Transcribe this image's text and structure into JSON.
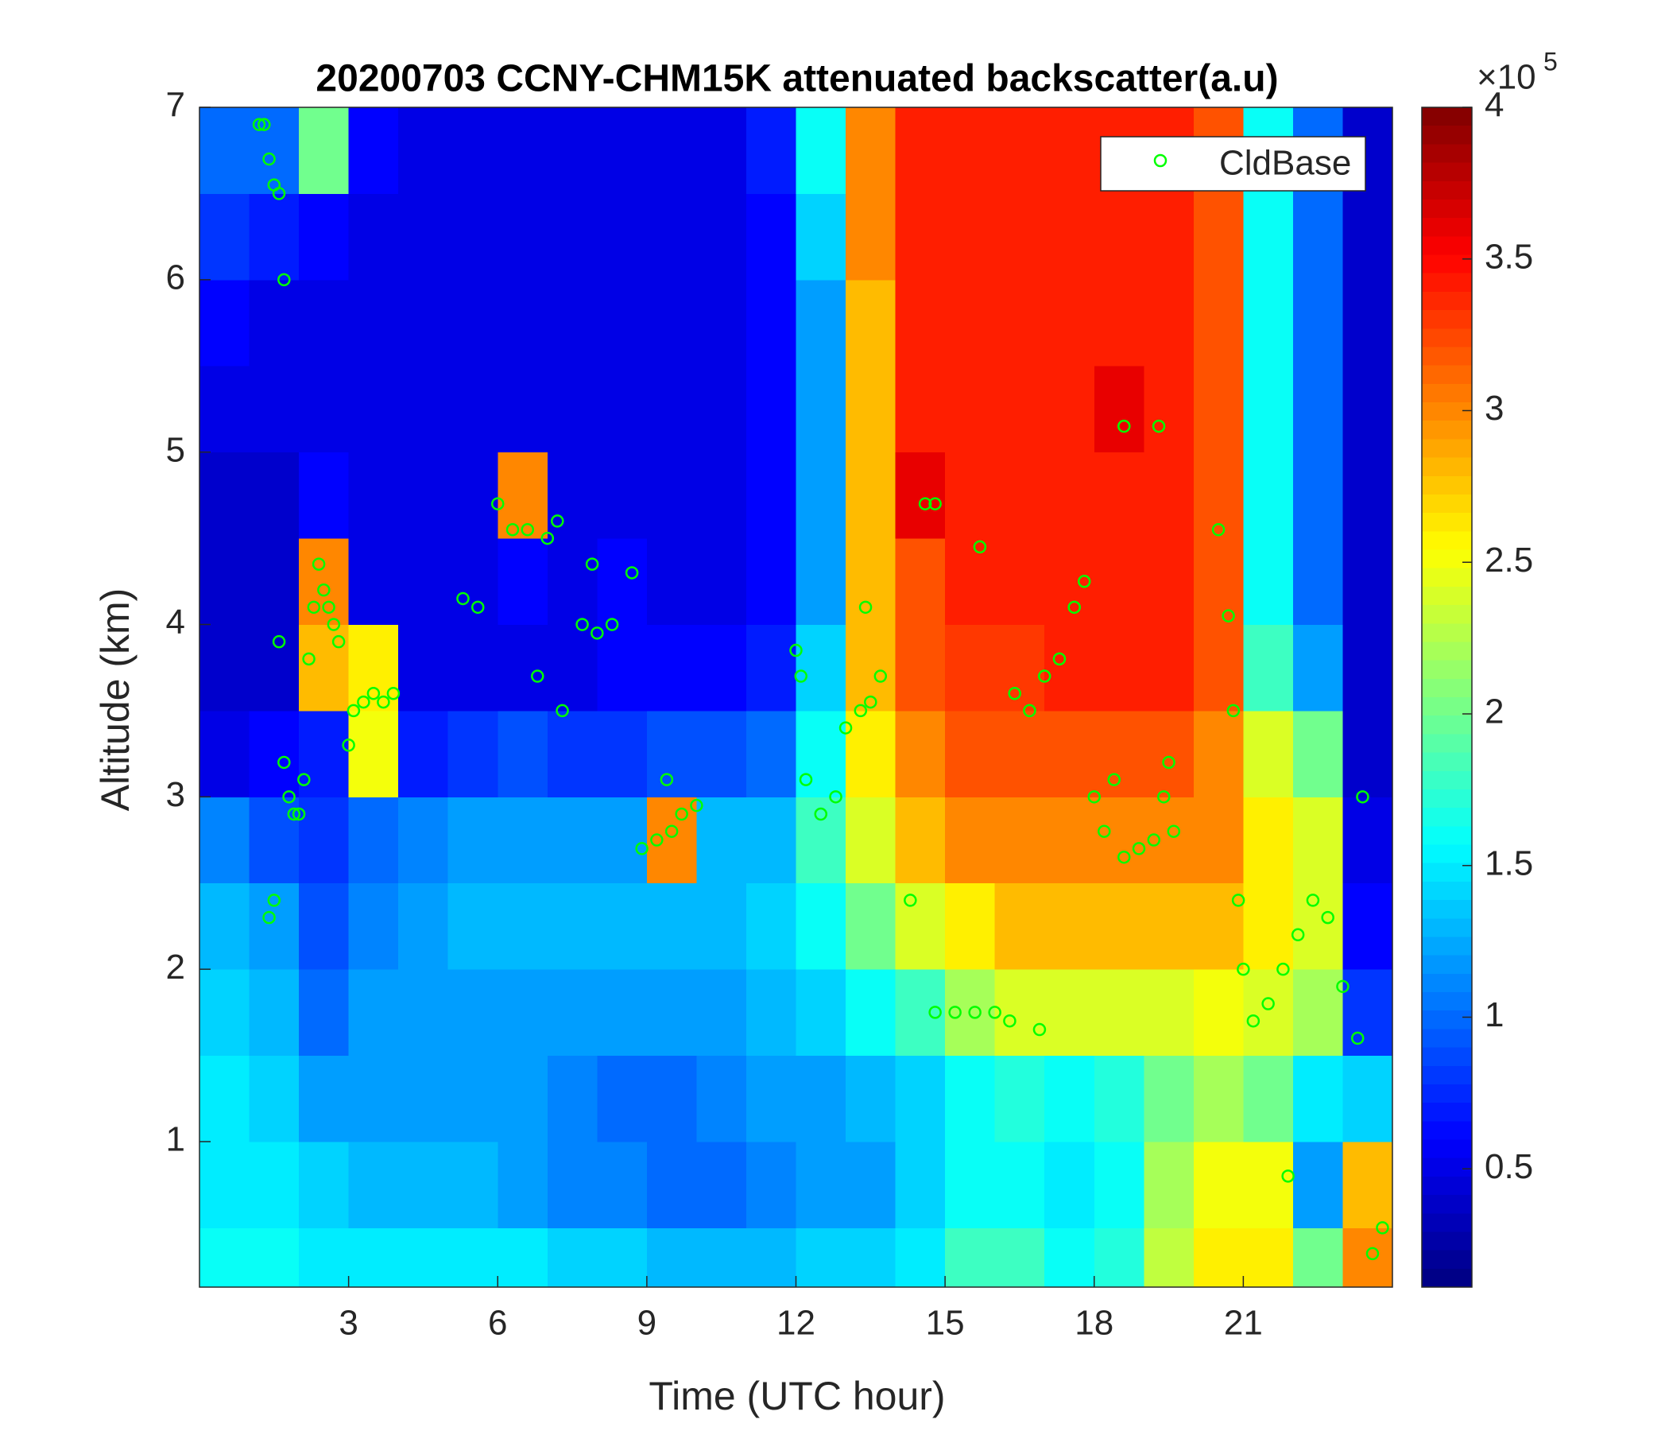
{
  "chart_data": {
    "type": "heatmap",
    "title": "20200703 CCNY-CHM15K attenuated backscatter(a.u)",
    "xlabel": "Time (UTC hour)",
    "ylabel": "Altitude (km)",
    "colormap": "jet",
    "xlim": [
      0,
      24
    ],
    "ylim": [
      0.156,
      7
    ],
    "xticks": [
      3,
      6,
      9,
      12,
      15,
      18,
      21
    ],
    "yticks": [
      1,
      2,
      3,
      4,
      5,
      6,
      7
    ],
    "clim": [
      0.11,
      4
    ],
    "cticks": [
      0.5,
      1,
      1.5,
      2,
      2.5,
      3,
      3.5,
      4
    ],
    "cbar_multiplier": {
      "base": "×10",
      "exponent": "5"
    },
    "x_bins": [
      0,
      1,
      2,
      3,
      4,
      5,
      6,
      7,
      8,
      9,
      10,
      11,
      12,
      13,
      14,
      15,
      16,
      17,
      18,
      19,
      20,
      21,
      22,
      23,
      24
    ],
    "y_bins": [
      0.156,
      0.5,
      1,
      1.5,
      2,
      2.5,
      3,
      3.5,
      4,
      4.5,
      5,
      5.5,
      6,
      6.5,
      7
    ],
    "z": [
      [
        1.6,
        1.6,
        1.5,
        1.5,
        1.5,
        1.5,
        1.5,
        1.4,
        1.4,
        1.3,
        1.3,
        1.3,
        1.4,
        1.4,
        1.5,
        1.8,
        1.8,
        1.6,
        1.7,
        2.3,
        2.6,
        2.6,
        2.0,
        3.0
      ],
      [
        1.5,
        1.5,
        1.4,
        1.3,
        1.3,
        1.3,
        1.2,
        1.1,
        1.1,
        1.0,
        1.0,
        1.1,
        1.2,
        1.2,
        1.4,
        1.6,
        1.6,
        1.5,
        1.6,
        2.2,
        2.5,
        2.5,
        1.2,
        2.8
      ],
      [
        1.5,
        1.4,
        1.2,
        1.2,
        1.2,
        1.2,
        1.2,
        1.1,
        1.0,
        1.0,
        1.1,
        1.2,
        1.2,
        1.3,
        1.4,
        1.6,
        1.7,
        1.6,
        1.7,
        2.0,
        2.2,
        2.0,
        1.5,
        1.4
      ],
      [
        1.4,
        1.3,
        1.0,
        1.2,
        1.2,
        1.2,
        1.2,
        1.2,
        1.2,
        1.2,
        1.2,
        1.3,
        1.4,
        1.6,
        1.8,
        2.2,
        2.4,
        2.4,
        2.4,
        2.4,
        2.5,
        2.4,
        2.2,
        0.8
      ],
      [
        1.3,
        1.2,
        0.9,
        1.1,
        1.2,
        1.3,
        1.3,
        1.3,
        1.3,
        1.3,
        1.3,
        1.4,
        1.6,
        2.0,
        2.4,
        2.6,
        2.8,
        2.8,
        2.8,
        2.8,
        2.8,
        2.6,
        2.4,
        0.6
      ],
      [
        1.1,
        0.9,
        0.8,
        1.0,
        1.1,
        1.2,
        1.2,
        1.2,
        1.2,
        3.0,
        1.3,
        1.3,
        1.8,
        2.4,
        2.8,
        3.0,
        3.0,
        3.0,
        3.0,
        3.0,
        3.0,
        2.6,
        2.4,
        0.5
      ],
      [
        0.5,
        0.6,
        0.7,
        2.5,
        0.7,
        0.8,
        0.9,
        0.8,
        0.8,
        0.9,
        0.9,
        1.0,
        1.6,
        2.6,
        3.0,
        3.2,
        3.2,
        3.2,
        3.2,
        3.2,
        3.0,
        2.4,
        2.0,
        0.4
      ],
      [
        0.4,
        0.4,
        2.8,
        2.6,
        0.5,
        0.5,
        0.5,
        0.5,
        0.6,
        0.6,
        0.6,
        0.7,
        1.4,
        2.8,
        3.2,
        3.3,
        3.3,
        3.4,
        3.4,
        3.4,
        3.2,
        1.8,
        1.2,
        0.4
      ],
      [
        0.4,
        0.4,
        3.0,
        0.5,
        0.5,
        0.5,
        0.6,
        0.5,
        0.6,
        0.5,
        0.5,
        0.6,
        1.2,
        2.8,
        3.2,
        3.4,
        3.4,
        3.4,
        3.4,
        3.4,
        3.2,
        1.6,
        1.0,
        0.4
      ],
      [
        0.4,
        0.4,
        0.6,
        0.5,
        0.5,
        0.5,
        3.0,
        0.5,
        0.5,
        0.5,
        0.5,
        0.6,
        1.2,
        2.8,
        3.6,
        3.4,
        3.4,
        3.4,
        3.4,
        3.4,
        3.2,
        1.6,
        1.0,
        0.4
      ],
      [
        0.5,
        0.5,
        0.5,
        0.5,
        0.5,
        0.5,
        0.5,
        0.5,
        0.5,
        0.5,
        0.5,
        0.6,
        1.2,
        2.8,
        3.4,
        3.4,
        3.4,
        3.4,
        3.6,
        3.4,
        3.2,
        1.6,
        1.0,
        0.4
      ],
      [
        0.6,
        0.5,
        0.5,
        0.5,
        0.5,
        0.5,
        0.5,
        0.5,
        0.5,
        0.5,
        0.5,
        0.6,
        1.2,
        2.8,
        3.4,
        3.4,
        3.4,
        3.4,
        3.4,
        3.4,
        3.2,
        1.6,
        1.0,
        0.4
      ],
      [
        0.8,
        0.7,
        0.6,
        0.5,
        0.5,
        0.5,
        0.5,
        0.5,
        0.5,
        0.5,
        0.5,
        0.6,
        1.4,
        3.0,
        3.4,
        3.4,
        3.4,
        3.4,
        3.4,
        3.4,
        3.2,
        1.6,
        1.0,
        0.4
      ],
      [
        1.0,
        1.0,
        2.0,
        0.6,
        0.5,
        0.5,
        0.5,
        0.5,
        0.5,
        0.5,
        0.5,
        0.7,
        1.6,
        3.0,
        3.4,
        3.4,
        3.4,
        3.4,
        3.4,
        3.4,
        3.2,
        1.6,
        1.0,
        0.4
      ]
    ],
    "legend": "upper right",
    "series": [
      {
        "name": "CldBase",
        "type": "scatter",
        "color": "#00ff00",
        "x": [
          1.2,
          1.3,
          1.4,
          1.5,
          1.6,
          1.7,
          1.4,
          1.5,
          1.6,
          1.7,
          1.8,
          1.9,
          2.0,
          2.1,
          2.2,
          2.3,
          2.4,
          2.5,
          2.6,
          2.7,
          2.8,
          3.0,
          3.1,
          3.3,
          3.5,
          3.7,
          3.9,
          5.3,
          5.6,
          6.0,
          6.3,
          6.6,
          7.0,
          7.2,
          6.8,
          7.3,
          7.7,
          8.0,
          8.3,
          7.9,
          8.7,
          8.9,
          9.2,
          9.5,
          9.7,
          9.4,
          10.0,
          12.0,
          12.1,
          12.2,
          12.5,
          12.8,
          13.0,
          13.3,
          13.5,
          13.7,
          13.4,
          14.3,
          14.6,
          14.8,
          14.8,
          15.2,
          15.6,
          16.0,
          16.3,
          15.7,
          16.9,
          16.4,
          16.7,
          17.0,
          17.3,
          17.6,
          17.8,
          18.0,
          18.2,
          18.4,
          18.6,
          18.9,
          19.2,
          19.4,
          19.6,
          19.3,
          18.6,
          19.5,
          20.5,
          20.7,
          20.8,
          21.0,
          21.2,
          21.5,
          21.8,
          22.1,
          22.4,
          22.7,
          23.0,
          23.3,
          23.6,
          23.8,
          23.4,
          20.9,
          21.9
        ],
        "y": [
          6.9,
          6.9,
          6.7,
          6.55,
          6.5,
          6.0,
          2.3,
          2.4,
          3.9,
          3.2,
          3.0,
          2.9,
          2.9,
          3.1,
          3.8,
          4.1,
          4.35,
          4.2,
          4.1,
          4.0,
          3.9,
          3.3,
          3.5,
          3.55,
          3.6,
          3.55,
          3.6,
          4.15,
          4.1,
          4.7,
          4.55,
          4.55,
          4.5,
          4.6,
          3.7,
          3.5,
          4.0,
          3.95,
          4.0,
          4.35,
          4.3,
          2.7,
          2.75,
          2.8,
          2.9,
          3.1,
          2.95,
          3.85,
          3.7,
          3.1,
          2.9,
          3.0,
          3.4,
          3.5,
          3.55,
          3.7,
          4.1,
          2.4,
          4.7,
          4.7,
          1.75,
          1.75,
          1.75,
          1.75,
          1.7,
          4.45,
          1.65,
          3.6,
          3.5,
          3.7,
          3.8,
          4.1,
          4.25,
          3.0,
          2.8,
          3.1,
          2.65,
          2.7,
          2.75,
          3.0,
          2.8,
          5.15,
          5.15,
          3.2,
          4.55,
          4.05,
          3.5,
          2.0,
          1.7,
          1.8,
          2.0,
          2.2,
          2.4,
          2.3,
          1.9,
          1.6,
          0.35,
          0.5,
          3.0,
          2.4,
          0.8
        ]
      }
    ]
  }
}
